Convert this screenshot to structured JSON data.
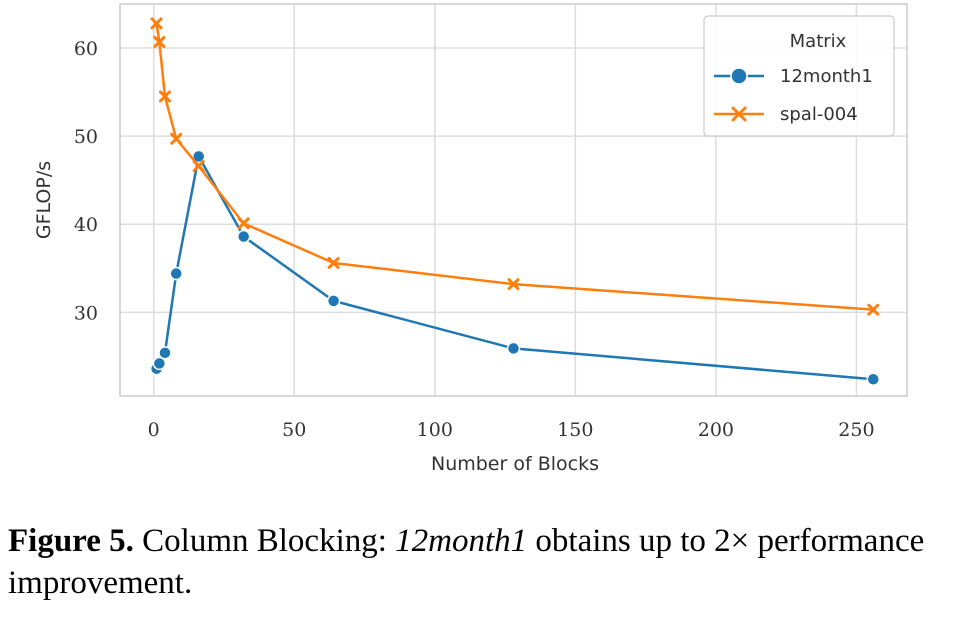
{
  "chart_data": {
    "type": "line",
    "xlabel": "Number of Blocks",
    "ylabel": "GFLOP/s",
    "xlim": [
      -12,
      268
    ],
    "ylim": [
      20.5,
      65
    ],
    "x_ticks": [
      0,
      50,
      100,
      150,
      200,
      250
    ],
    "y_ticks": [
      30,
      40,
      50,
      60
    ],
    "grid": true,
    "legend": {
      "title": "Matrix",
      "placement": "top-right"
    },
    "series": [
      {
        "name": "12month1",
        "color": "#1f77b4",
        "marker": "circle",
        "x": [
          1,
          2,
          4,
          8,
          16,
          32,
          64,
          128,
          256
        ],
        "y": [
          23.6,
          24.2,
          25.4,
          34.4,
          47.7,
          38.6,
          31.3,
          25.9,
          22.4
        ]
      },
      {
        "name": "spal-004",
        "color": "#ff7f0e",
        "marker": "x",
        "x": [
          1,
          2,
          4,
          8,
          16,
          32,
          64,
          128,
          256
        ],
        "y": [
          62.8,
          60.7,
          54.5,
          49.7,
          46.6,
          40.1,
          35.6,
          33.2,
          30.3
        ]
      }
    ]
  },
  "caption": {
    "label": "Figure 5.",
    "text_before": " Column Blocking: ",
    "emphasis": "12month1",
    "text_after": " obtains up to 2× performance improvement."
  }
}
